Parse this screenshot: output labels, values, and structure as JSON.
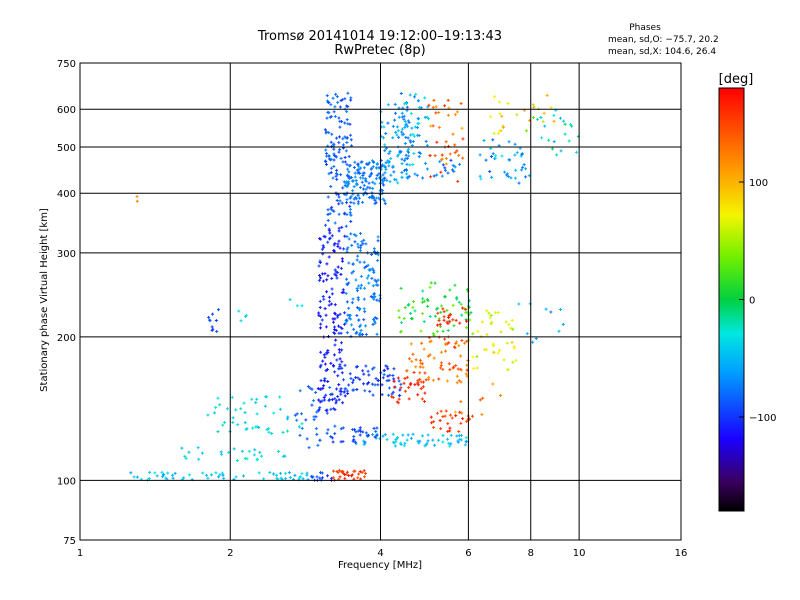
{
  "chart_data": {
    "type": "scatter",
    "title": "Tromsø 20141014 19:12:00–19:13:43",
    "subtitle": "RwPretec (8p)",
    "xlabel": "Frequency [MHz]",
    "ylabel": "Stationary phase Virtual Height [km]",
    "x_scale": "log",
    "y_scale": "log",
    "xlim": [
      1,
      16
    ],
    "ylim": [
      75,
      750
    ],
    "x_ticks": [
      1,
      2,
      4,
      6,
      8,
      10,
      16
    ],
    "x_tick_labels": [
      "1",
      "2",
      "4",
      "6",
      "8",
      "10",
      "16"
    ],
    "y_ticks": [
      75,
      100,
      200,
      300,
      400,
      500,
      600,
      750
    ],
    "y_tick_labels": [
      "75",
      "100",
      "200",
      "300",
      "400",
      "500",
      "600",
      "750"
    ],
    "grid": true,
    "phase_info": {
      "heading": "Phases",
      "line_o": "mean, sd,O: −75.7, 20.2",
      "line_x": "mean, sd,X: 104.6, 26.4"
    },
    "colorbar": {
      "label": "[deg]",
      "range": [
        -180,
        180
      ],
      "ticks": [
        100,
        0,
        -100
      ],
      "tick_labels": [
        "100",
        "0",
        "−100"
      ]
    },
    "clusters": [
      {
        "f": [
          1.25,
          2.9
        ],
        "h": [
          100,
          104
        ],
        "n": 60,
        "phase": [
          -60,
          -30
        ]
      },
      {
        "f": [
          2.9,
          3.2
        ],
        "h": [
          100,
          104
        ],
        "n": 14,
        "phase": [
          -110,
          -85
        ]
      },
      {
        "f": [
          3.2,
          3.75
        ],
        "h": [
          100,
          105
        ],
        "n": 30,
        "phase": [
          140,
          175
        ]
      },
      {
        "f": [
          1.8,
          1.9
        ],
        "h": [
          200,
          230
        ],
        "n": 10,
        "phase": [
          -100,
          -80
        ]
      },
      {
        "f": [
          2.05,
          2.2
        ],
        "h": [
          210,
          235
        ],
        "n": 4,
        "phase": [
          -50,
          -30
        ]
      },
      {
        "f": [
          2.6,
          2.8
        ],
        "h": [
          230,
          240
        ],
        "n": 3,
        "phase": [
          -50,
          -30
        ]
      },
      {
        "f": [
          1.3,
          1.32
        ],
        "h": [
          370,
          400
        ],
        "n": 2,
        "phase": [
          110,
          150
        ]
      },
      {
        "f": [
          1.6,
          2.6
        ],
        "h": [
          110,
          118
        ],
        "n": 25,
        "phase": [
          -50,
          -20
        ]
      },
      {
        "f": [
          1.8,
          2.9
        ],
        "h": [
          125,
          150
        ],
        "n": 45,
        "phase": [
          -50,
          -20
        ]
      },
      {
        "f": [
          2.7,
          3.2
        ],
        "h": [
          115,
          160
        ],
        "n": 35,
        "phase": [
          -95,
          -70
        ]
      },
      {
        "f": [
          3.0,
          3.4
        ],
        "h": [
          140,
          340
        ],
        "n": 170,
        "phase": [
          -120,
          -95
        ]
      },
      {
        "f": [
          3.1,
          3.5
        ],
        "h": [
          340,
          650
        ],
        "n": 140,
        "phase": [
          -100,
          -70
        ]
      },
      {
        "f": [
          3.4,
          4.0
        ],
        "h": [
          200,
          330
        ],
        "n": 130,
        "phase": [
          -90,
          -60
        ]
      },
      {
        "f": [
          3.4,
          4.1
        ],
        "h": [
          380,
          470
        ],
        "n": 140,
        "phase": [
          -90,
          -60
        ]
      },
      {
        "f": [
          4.0,
          4.6
        ],
        "h": [
          420,
          620
        ],
        "n": 80,
        "phase": [
          -80,
          -40
        ]
      },
      {
        "f": [
          4.4,
          5.0
        ],
        "h": [
          430,
          650
        ],
        "n": 60,
        "phase": [
          -80,
          -30
        ]
      },
      {
        "f": [
          5.0,
          5.9
        ],
        "h": [
          400,
          640
        ],
        "n": 40,
        "phase": [
          100,
          170
        ]
      },
      {
        "f": [
          5.0,
          5.9
        ],
        "h": [
          430,
          470
        ],
        "n": 15,
        "phase": [
          -100,
          -60
        ]
      },
      {
        "f": [
          3.5,
          6.0
        ],
        "h": [
          118,
          125
        ],
        "n": 60,
        "phase": [
          -60,
          -30
        ]
      },
      {
        "f": [
          3.2,
          4.0
        ],
        "h": [
          120,
          130
        ],
        "n": 30,
        "phase": [
          -110,
          -80
        ]
      },
      {
        "f": [
          3.3,
          4.4
        ],
        "h": [
          150,
          175
        ],
        "n": 70,
        "phase": [
          -110,
          -80
        ]
      },
      {
        "f": [
          4.2,
          5.0
        ],
        "h": [
          145,
          165
        ],
        "n": 30,
        "phase": [
          150,
          175
        ]
      },
      {
        "f": [
          4.5,
          6.0
        ],
        "h": [
          160,
          200
        ],
        "n": 70,
        "phase": [
          110,
          160
        ]
      },
      {
        "f": [
          4.3,
          6.2
        ],
        "h": [
          200,
          260
        ],
        "n": 70,
        "phase": [
          -20,
          40
        ]
      },
      {
        "f": [
          5.2,
          6.0
        ],
        "h": [
          210,
          230
        ],
        "n": 20,
        "phase": [
          150,
          175
        ]
      },
      {
        "f": [
          5.0,
          6.2
        ],
        "h": [
          125,
          140
        ],
        "n": 25,
        "phase": [
          140,
          175
        ]
      },
      {
        "f": [
          6.0,
          7.5
        ],
        "h": [
          170,
          230
        ],
        "n": 40,
        "phase": [
          40,
          90
        ]
      },
      {
        "f": [
          6.3,
          8.0
        ],
        "h": [
          420,
          520
        ],
        "n": 40,
        "phase": [
          -90,
          -30
        ]
      },
      {
        "f": [
          6.5,
          9.0
        ],
        "h": [
          530,
          650
        ],
        "n": 25,
        "phase": [
          30,
          120
        ]
      },
      {
        "f": [
          8.0,
          10.0
        ],
        "h": [
          480,
          600
        ],
        "n": 20,
        "phase": [
          -60,
          0
        ]
      },
      {
        "f": [
          7.5,
          9.5
        ],
        "h": [
          190,
          240
        ],
        "n": 10,
        "phase": [
          -80,
          -40
        ]
      },
      {
        "f": [
          5.5,
          7.0
        ],
        "h": [
          130,
          160
        ],
        "n": 12,
        "phase": [
          90,
          150
        ]
      }
    ]
  }
}
